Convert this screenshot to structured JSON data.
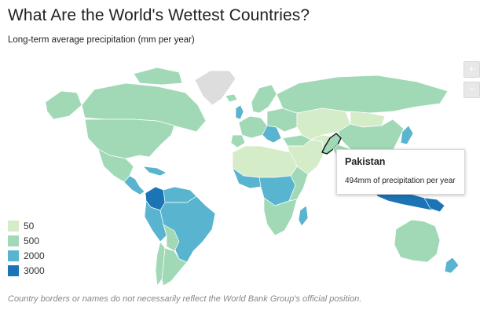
{
  "header": {
    "title": "What Are the World's Wettest Countries?",
    "subtitle": "Long-term average precipitation (mm per year)"
  },
  "zoom": {
    "in_label": "+",
    "out_label": "−"
  },
  "legend": {
    "items": [
      {
        "label": "50",
        "color": "#d5ecc9"
      },
      {
        "label": "500",
        "color": "#a1d9b7"
      },
      {
        "label": "2000",
        "color": "#59b4cf"
      },
      {
        "label": "3000",
        "color": "#1b74b5"
      }
    ]
  },
  "colors": {
    "no_data": "#dddddd",
    "border": "#ffffff",
    "highlight_outline": "#111111"
  },
  "tooltip": {
    "country": "Pakistan",
    "text": "494mm of precipitation per year"
  },
  "disclaimer": "Country borders or names do not necessarily reflect the World Bank Group's official position."
}
